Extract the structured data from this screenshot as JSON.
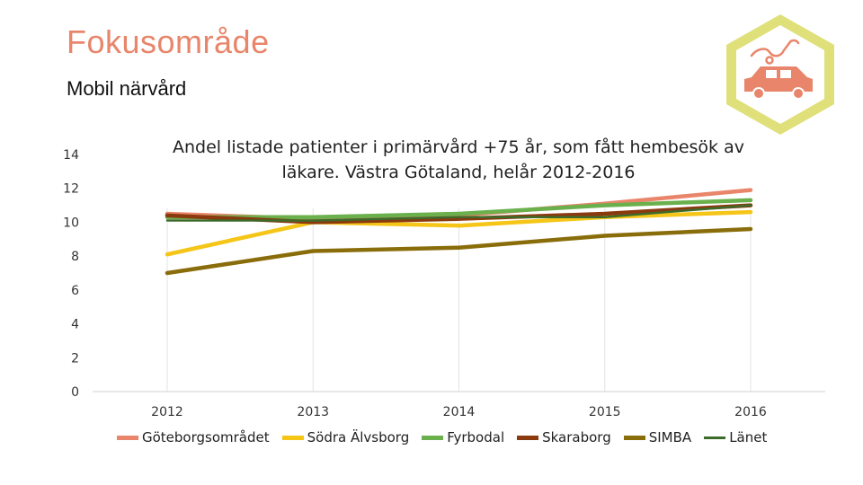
{
  "header": {
    "title": "Fokusområde",
    "subtitle": "Mobil närvård"
  },
  "badge": {
    "icon": "stethoscope-car-icon",
    "hex_color": "#dfe07a",
    "icon_color": "#e8856a"
  },
  "chart_data": {
    "type": "line",
    "title": "Andel listade patienter i primärvård +75 år, som fått hembesök av läkare. Västra Götaland, helår 2012-2016",
    "title_lines": [
      "Andel listade patienter i primärvård +75 år, som fått hembesök av",
      "läkare. Västra Götaland, helår 2012-2016"
    ],
    "categories": [
      "2012",
      "2013",
      "2014",
      "2015",
      "2016"
    ],
    "ylim": [
      0,
      14
    ],
    "yticks": [
      0,
      2,
      4,
      6,
      8,
      10,
      12,
      14
    ],
    "ytick_labels": [
      "0",
      "2",
      "4",
      "6",
      "8",
      "10",
      "12",
      "14"
    ],
    "grid": "vertical",
    "legend_position": "bottom",
    "series": [
      {
        "name": "Göteborgsområdet",
        "color": "#e8856a",
        "values": [
          10.5,
          10.2,
          10.4,
          11.1,
          11.9
        ]
      },
      {
        "name": "Södra Älvsborg",
        "color": "#f5c518",
        "values": [
          8.1,
          10.0,
          9.8,
          10.3,
          10.6
        ]
      },
      {
        "name": "Fyrbodal",
        "color": "#6ab04c",
        "values": [
          10.3,
          10.3,
          10.5,
          11.0,
          11.3
        ]
      },
      {
        "name": "Skaraborg",
        "color": "#8b3a0f",
        "values": [
          10.4,
          10.0,
          10.2,
          10.5,
          11.0
        ]
      },
      {
        "name": "SIMBA",
        "color": "#8a6d0b",
        "values": [
          7.0,
          8.3,
          8.5,
          9.2,
          9.6
        ]
      },
      {
        "name": "Länet",
        "color": "#3d6b2a",
        "values": [
          10.1,
          10.1,
          10.3,
          10.3,
          11.0
        ]
      }
    ]
  }
}
